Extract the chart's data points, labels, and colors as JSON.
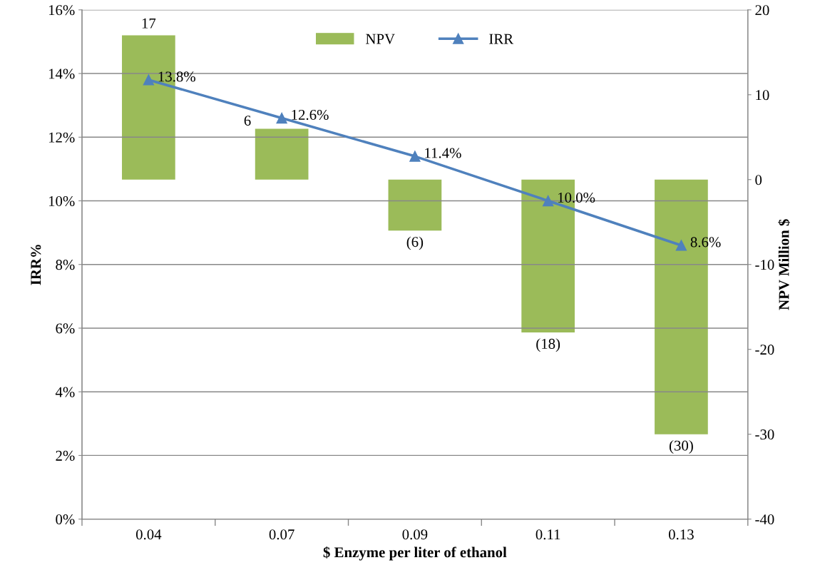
{
  "chart_data": {
    "type": "bar",
    "xlabel": "$ Enzyme per liter of ethanol",
    "ylabel": "IRR%",
    "y2label": "NPV Million $",
    "categories": [
      "0.04",
      "0.07",
      "0.09",
      "0.11",
      "0.13"
    ],
    "series": [
      {
        "name": "NPV",
        "axis": "y2",
        "color": "#9bbb59",
        "values": [
          17,
          6,
          -6,
          -18,
          -30
        ],
        "value_labels": [
          "17",
          "6",
          "(6)",
          "(18)",
          "(30)"
        ]
      },
      {
        "name": "IRR",
        "type": "line",
        "color": "#4f81bd",
        "marker": "triangle",
        "values": [
          13.8,
          12.6,
          11.4,
          10.0,
          8.6
        ],
        "value_labels": [
          "13.8%",
          "12.6%",
          "11.4%",
          "10.0%",
          "8.6%"
        ]
      }
    ],
    "ylim": [
      0,
      16
    ],
    "yticks": [
      {
        "value": 0,
        "label": "0%"
      },
      {
        "value": 2,
        "label": "2%"
      },
      {
        "value": 4,
        "label": "4%"
      },
      {
        "value": 6,
        "label": "6%"
      },
      {
        "value": 8,
        "label": "8%"
      },
      {
        "value": 10,
        "label": "10%"
      },
      {
        "value": 12,
        "label": "12%"
      },
      {
        "value": 14,
        "label": "14%"
      },
      {
        "value": 16,
        "label": "16%"
      }
    ],
    "y2lim": [
      -40,
      20
    ],
    "y2ticks": [
      -40,
      -30,
      -20,
      -10,
      0,
      10,
      20
    ],
    "grid": "y",
    "legend": "top"
  }
}
